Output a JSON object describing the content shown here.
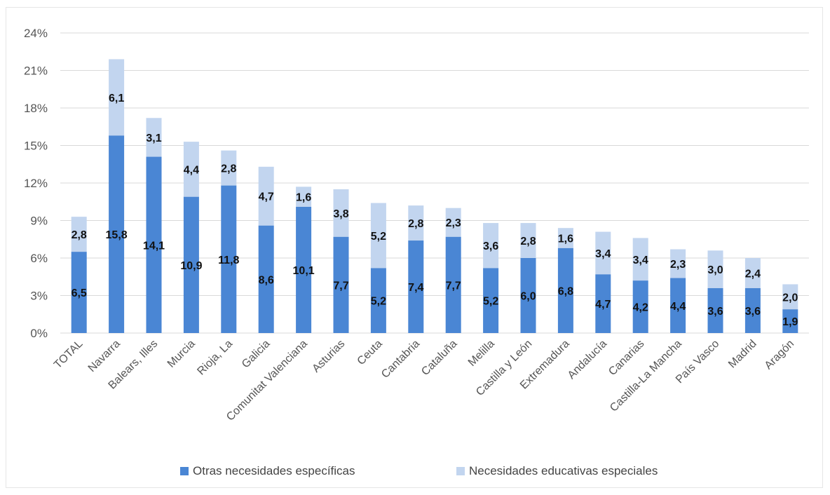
{
  "chart_data": {
    "type": "bar",
    "stacked": true,
    "categories": [
      "TOTAL",
      "Navarra",
      "Balears, Illes",
      "Murcia",
      "Rioja, La",
      "Galicia",
      "Comunitat Valenciana",
      "Asturias",
      "Ceuta",
      "Cantabria",
      "Cataluña",
      "Melilla",
      "Castilla y León",
      "Extremadura",
      "Andalucía",
      "Canarias",
      "Castilla-La Mancha",
      "País Vasco",
      "Madrid",
      "Aragón"
    ],
    "series": [
      {
        "name": "Otras necesidades específicas",
        "color": "#4a86d4",
        "values": [
          6.5,
          15.8,
          14.1,
          10.9,
          11.8,
          8.6,
          10.1,
          7.7,
          5.2,
          7.4,
          7.7,
          5.2,
          6.0,
          6.8,
          4.7,
          4.2,
          4.4,
          3.6,
          3.6,
          1.9
        ],
        "labels": [
          "6,5",
          "15,8",
          "14,1",
          "10,9",
          "11,8",
          "8,6",
          "10,1",
          "7,7",
          "5,2",
          "7,4",
          "7,7",
          "5,2",
          "6,0",
          "6,8",
          "4,7",
          "4,2",
          "4,4",
          "3,6",
          "3,6",
          "1,9"
        ]
      },
      {
        "name": "Necesidades educativas especiales",
        "color": "#c2d5ef",
        "values": [
          2.8,
          6.1,
          3.1,
          4.4,
          2.8,
          4.7,
          1.6,
          3.8,
          5.2,
          2.8,
          2.3,
          3.6,
          2.8,
          1.6,
          3.4,
          3.4,
          2.3,
          3.0,
          2.4,
          2.0
        ],
        "labels": [
          "2,8",
          "6,1",
          "3,1",
          "4,4",
          "2,8",
          "4,7",
          "1,6",
          "3,8",
          "5,2",
          "2,8",
          "2,3",
          "3,6",
          "2,8",
          "1,6",
          "3,4",
          "3,4",
          "2,3",
          "3,0",
          "2,4",
          "2,0"
        ]
      }
    ],
    "ylim": [
      0,
      24
    ],
    "yticks": [
      0,
      3,
      6,
      9,
      12,
      15,
      18,
      21,
      24
    ],
    "ytick_labels": [
      "0%",
      "3%",
      "6%",
      "9%",
      "12%",
      "15%",
      "18%",
      "21%",
      "24%"
    ],
    "grid": true,
    "legend": "bottom",
    "title": "",
    "xlabel": "",
    "ylabel": ""
  }
}
